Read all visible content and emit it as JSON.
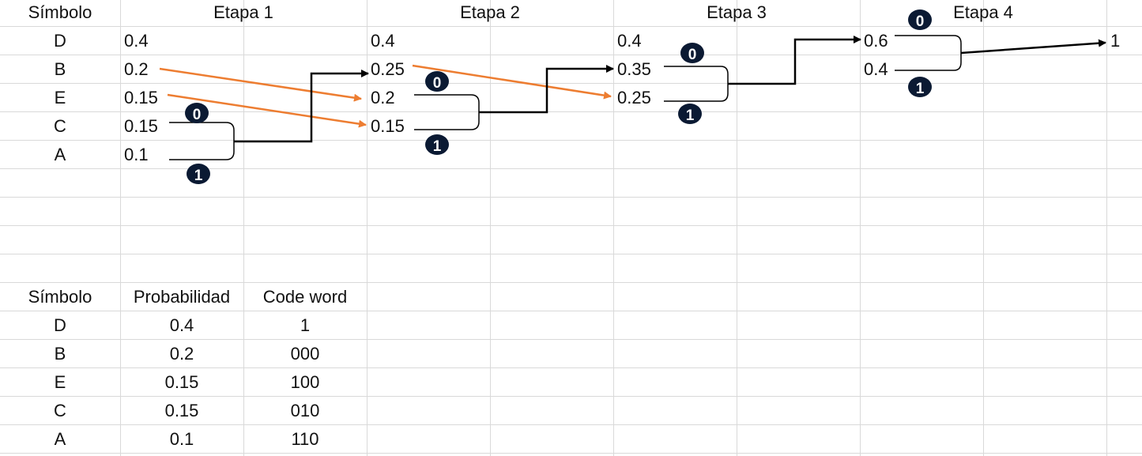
{
  "colors": {
    "grid": "#d9d9d9",
    "arrow_orange": "#ed7d31",
    "connector": "#000000",
    "badge_bg": "#0b1a33",
    "badge_text": "#ffffff"
  },
  "header": {
    "symbol": "Símbolo",
    "stages": [
      "Etapa 1",
      "Etapa 2",
      "Etapa 3",
      "Etapa 4"
    ]
  },
  "symbols": [
    "D",
    "B",
    "E",
    "C",
    "A"
  ],
  "stage1": [
    "0.4",
    "0.2",
    "0.15",
    "0.15",
    "0.1"
  ],
  "stage2": [
    "0.4",
    "0.25",
    "0.2",
    "0.15"
  ],
  "stage3": [
    "0.4",
    "0.35",
    "0.25"
  ],
  "stage4": [
    "0.6",
    "0.4"
  ],
  "final": "1",
  "badges": {
    "zero": "0",
    "one": "1"
  },
  "table": {
    "headers": [
      "Símbolo",
      "Probabilidad",
      "Code word"
    ],
    "rows": [
      [
        "D",
        "0.4",
        "1"
      ],
      [
        "B",
        "0.2",
        "000"
      ],
      [
        "E",
        "0.15",
        "100"
      ],
      [
        "C",
        "0.15",
        "010"
      ],
      [
        "A",
        "0.1",
        "110"
      ]
    ]
  }
}
